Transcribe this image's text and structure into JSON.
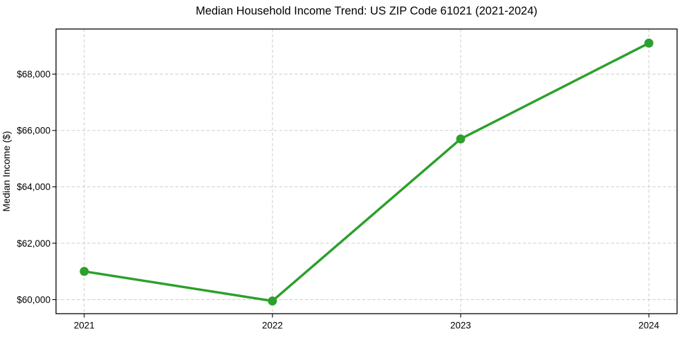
{
  "chart_data": {
    "type": "line",
    "title": "Median Household Income Trend: US ZIP Code 61021 (2021-2024)",
    "xlabel": "",
    "ylabel": "Median Income ($)",
    "x": [
      2021,
      2022,
      2023,
      2024
    ],
    "x_tick_labels": [
      "2021",
      "2022",
      "2023",
      "2024"
    ],
    "values": [
      61000,
      59950,
      65700,
      69100
    ],
    "yticks": [
      60000,
      62000,
      64000,
      66000,
      68000
    ],
    "ytick_labels": [
      "$60,000",
      "$62,000",
      "$64,000",
      "$66,000",
      "$68,000"
    ],
    "xlim": [
      2020.85,
      2024.15
    ],
    "ylim": [
      59500,
      69600
    ],
    "grid": true,
    "grid_style": "dashed",
    "legend_position": "none",
    "line_color": "#2ca02c",
    "marker": "circle",
    "marker_color": "#2ca02c"
  }
}
